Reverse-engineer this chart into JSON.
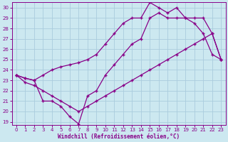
{
  "xlabel": "Windchill (Refroidissement éolien,°C)",
  "bg_color": "#cce8f0",
  "grid_color": "#aaccdd",
  "line_color": "#880088",
  "xlim_min": -0.5,
  "xlim_max": 23.5,
  "ylim_min": 18.7,
  "ylim_max": 30.5,
  "yticks": [
    19,
    20,
    21,
    22,
    23,
    24,
    25,
    26,
    27,
    28,
    29,
    30
  ],
  "xticks": [
    0,
    1,
    2,
    3,
    4,
    5,
    6,
    7,
    8,
    9,
    10,
    11,
    12,
    13,
    14,
    15,
    16,
    17,
    18,
    19,
    20,
    21,
    22,
    23
  ],
  "line1_x": [
    0,
    1,
    2,
    3,
    4,
    5,
    6,
    7,
    8,
    9,
    10,
    11,
    12,
    13,
    14,
    15,
    16,
    17,
    18,
    19,
    20,
    21,
    22,
    23
  ],
  "line1_y": [
    23.5,
    23.2,
    23.0,
    23.5,
    24.0,
    24.3,
    24.5,
    24.7,
    25.0,
    25.5,
    26.5,
    27.5,
    28.5,
    29.0,
    29.0,
    30.5,
    30.0,
    29.5,
    30.0,
    29.0,
    29.0,
    29.0,
    27.5,
    25.0
  ],
  "line2_x": [
    0,
    1,
    2,
    3,
    4,
    5,
    6,
    7,
    8,
    9,
    10,
    11,
    12,
    13,
    14,
    15,
    16,
    17,
    18,
    19,
    20,
    21,
    22,
    23
  ],
  "line2_y": [
    23.5,
    23.2,
    23.0,
    21.0,
    21.0,
    20.5,
    19.5,
    18.8,
    21.5,
    22.0,
    23.5,
    24.5,
    25.5,
    26.5,
    27.0,
    29.0,
    29.5,
    29.0,
    29.0,
    29.0,
    28.5,
    27.5,
    25.5,
    25.0
  ],
  "line3_x": [
    0,
    1,
    2,
    3,
    4,
    5,
    6,
    7,
    8,
    9,
    10,
    11,
    12,
    13,
    14,
    15,
    16,
    17,
    18,
    19,
    20,
    21,
    22,
    23
  ],
  "line3_y": [
    23.5,
    22.8,
    22.5,
    22.0,
    21.5,
    21.0,
    20.5,
    20.0,
    20.5,
    21.0,
    21.5,
    22.0,
    22.5,
    23.0,
    23.5,
    24.0,
    24.5,
    25.0,
    25.5,
    26.0,
    26.5,
    27.0,
    27.5,
    25.0
  ]
}
